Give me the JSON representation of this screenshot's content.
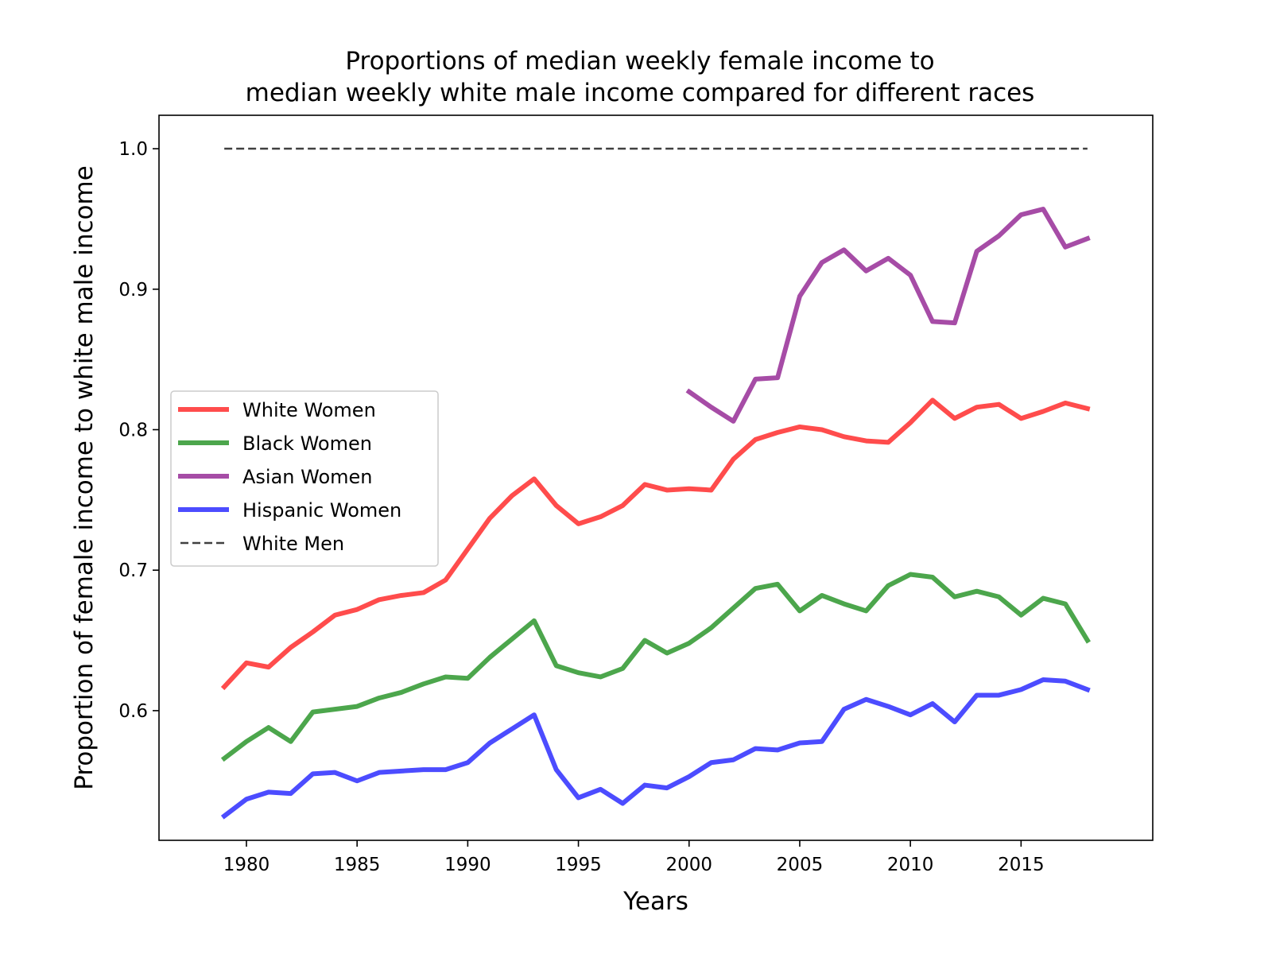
{
  "chart_data": {
    "type": "line",
    "title": [
      "Proportions of median weekly female income to",
      "median weekly white male income compared for different races"
    ],
    "xlabel": "Years",
    "ylabel": "Proportion of female income to white male income",
    "xlim": [
      1976.05,
      2020.95
    ],
    "ylim": [
      0.5077,
      1.0238
    ],
    "xticks": [
      1980,
      1985,
      1990,
      1995,
      2000,
      2005,
      2010,
      2015
    ],
    "xtick_labels": [
      "1980",
      "1985",
      "1990",
      "1995",
      "2000",
      "2005",
      "2010",
      "2015"
    ],
    "yticks": [
      0.6,
      0.7,
      0.8,
      0.9,
      1.0
    ],
    "ytick_labels": [
      "0.6",
      "0.7",
      "0.8",
      "0.9",
      "1.0"
    ],
    "grid": false,
    "legend_position": "center-left",
    "series": [
      {
        "name": "White Women",
        "color": "#ff0000",
        "style": "solid",
        "x": [
          1979,
          1980,
          1981,
          1982,
          1983,
          1984,
          1985,
          1986,
          1987,
          1988,
          1989,
          1990,
          1991,
          1992,
          1993,
          1994,
          1995,
          1996,
          1997,
          1998,
          1999,
          2000,
          2001,
          2002,
          2003,
          2004,
          2005,
          2006,
          2007,
          2008,
          2009,
          2010,
          2011,
          2012,
          2013,
          2014,
          2015,
          2016,
          2017,
          2018
        ],
        "values": [
          0.617,
          0.634,
          0.631,
          0.645,
          0.656,
          0.668,
          0.672,
          0.679,
          0.682,
          0.684,
          0.693,
          0.715,
          0.737,
          0.753,
          0.765,
          0.746,
          0.733,
          0.738,
          0.746,
          0.761,
          0.757,
          0.758,
          0.757,
          0.779,
          0.793,
          0.798,
          0.802,
          0.8,
          0.795,
          0.792,
          0.791,
          0.805,
          0.821,
          0.808,
          0.816,
          0.818,
          0.808,
          0.813,
          0.819,
          0.815
        ]
      },
      {
        "name": "Black Women",
        "color": "#008000",
        "style": "solid",
        "x": [
          1979,
          1980,
          1981,
          1982,
          1983,
          1984,
          1985,
          1986,
          1987,
          1988,
          1989,
          1990,
          1991,
          1992,
          1993,
          1994,
          1995,
          1996,
          1997,
          1998,
          1999,
          2000,
          2001,
          2002,
          2003,
          2004,
          2005,
          2006,
          2007,
          2008,
          2009,
          2010,
          2011,
          2012,
          2013,
          2014,
          2015,
          2016,
          2017,
          2018
        ],
        "values": [
          0.566,
          0.578,
          0.588,
          0.578,
          0.599,
          0.601,
          0.603,
          0.609,
          0.613,
          0.619,
          0.624,
          0.623,
          0.638,
          0.651,
          0.664,
          0.632,
          0.627,
          0.624,
          0.63,
          0.65,
          0.641,
          0.648,
          0.659,
          0.673,
          0.687,
          0.69,
          0.671,
          0.682,
          0.676,
          0.671,
          0.689,
          0.697,
          0.695,
          0.681,
          0.685,
          0.681,
          0.668,
          0.68,
          0.676,
          0.65
        ]
      },
      {
        "name": "Asian Women",
        "color": "#800080",
        "style": "solid",
        "x": [
          2000,
          2001,
          2002,
          2003,
          2004,
          2005,
          2006,
          2007,
          2008,
          2009,
          2010,
          2011,
          2012,
          2013,
          2014,
          2015,
          2016,
          2017,
          2018
        ],
        "values": [
          0.827,
          0.816,
          0.806,
          0.836,
          0.837,
          0.895,
          0.919,
          0.928,
          0.913,
          0.922,
          0.91,
          0.877,
          0.876,
          0.927,
          0.938,
          0.953,
          0.957,
          0.93,
          0.936
        ]
      },
      {
        "name": "Hispanic Women",
        "color": "#0000ff",
        "style": "solid",
        "x": [
          1979,
          1980,
          1981,
          1982,
          1983,
          1984,
          1985,
          1986,
          1987,
          1988,
          1989,
          1990,
          1991,
          1992,
          1993,
          1994,
          1995,
          1996,
          1997,
          1998,
          1999,
          2000,
          2001,
          2002,
          2003,
          2004,
          2005,
          2006,
          2007,
          2008,
          2009,
          2010,
          2011,
          2012,
          2013,
          2014,
          2015,
          2016,
          2017,
          2018
        ],
        "values": [
          0.525,
          0.537,
          0.542,
          0.541,
          0.555,
          0.556,
          0.55,
          0.556,
          0.557,
          0.558,
          0.558,
          0.563,
          0.577,
          0.587,
          0.597,
          0.558,
          0.538,
          0.544,
          0.534,
          0.547,
          0.545,
          0.553,
          0.563,
          0.565,
          0.573,
          0.572,
          0.577,
          0.578,
          0.601,
          0.608,
          0.603,
          0.597,
          0.605,
          0.592,
          0.611,
          0.611,
          0.615,
          0.622,
          0.621,
          0.615
        ]
      },
      {
        "name": "White Men",
        "color": "#000000",
        "style": "dashed",
        "x": [
          1979,
          2018
        ],
        "values": [
          1.0,
          1.0
        ]
      }
    ]
  }
}
